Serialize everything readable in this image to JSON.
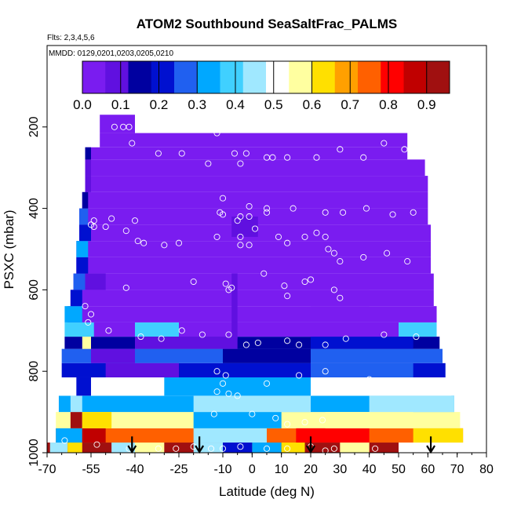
{
  "chart_data": {
    "type": "heatmap",
    "title": "ATOM2 Southbound SeaSaltFrac_PALMS",
    "subtitle_flights": "Flts: 2,3,4,5,6",
    "subtitle_dates": "MMDD: 0129,0201,0203,0205,0210",
    "xlabel": "Latitude (deg N)",
    "ylabel": "PSXC (mbar)",
    "xlim": [
      -70,
      80
    ],
    "ylim": [
      1000,
      0
    ],
    "x_ticks": [
      -70,
      -55,
      -40,
      -25,
      -10,
      0,
      10,
      20,
      30,
      40,
      50,
      60,
      70,
      80
    ],
    "x_tick_labels": [
      "-70",
      "-55",
      "-40",
      "-25",
      "-10",
      "0",
      "10",
      "20",
      "30",
      "40",
      "50",
      "60",
      "70",
      "80"
    ],
    "y_ticks": [
      200,
      400,
      600,
      800,
      1000
    ],
    "y_tick_labels": [
      "200",
      "400",
      "600",
      "800",
      "1000"
    ],
    "colorbar": {
      "min": 0.0,
      "max": 0.96,
      "ticks": [
        0.0,
        0.1,
        0.2,
        0.3,
        0.4,
        0.5,
        0.6,
        0.7,
        0.8,
        0.9
      ],
      "tick_labels": [
        "0.0",
        "0.1",
        "0.2",
        "0.3",
        "0.4",
        "0.5",
        "0.6",
        "0.7",
        "0.8",
        "0.9"
      ],
      "colors": [
        "#7a1cf0",
        "#6010e0",
        "#0000a0",
        "#0010d0",
        "#2060f0",
        "#00a8ff",
        "#40d0ff",
        "#a0e8ff",
        "#ffffff",
        "#ffffa0",
        "#ffe000",
        "#ffa000",
        "#ff6000",
        "#ff0000",
        "#c00000",
        "#a01010"
      ]
    },
    "bands": [
      {
        "p": [
          975,
          1000
        ],
        "x": [
          -70,
          50
        ],
        "value": 0.9
      },
      {
        "p": [
          940,
          975
        ],
        "x": [
          -67,
          72
        ],
        "value": 0.72
      },
      {
        "p": [
          900,
          940
        ],
        "x": [
          -67,
          71
        ],
        "value": 0.55
      },
      {
        "p": [
          860,
          900
        ],
        "x": [
          -66,
          69
        ],
        "value": 0.3
      },
      {
        "p": [
          815,
          860
        ],
        "x": [
          -66,
          68
        ],
        "value": 0.5
      },
      {
        "p": [
          780,
          815
        ],
        "x": [
          -65,
          66
        ],
        "value": 0.22
      },
      {
        "p": [
          745,
          780
        ],
        "x": [
          -65,
          65
        ],
        "value": 0.25
      },
      {
        "p": [
          715,
          745
        ],
        "x": [
          -64,
          64
        ],
        "value": 0.15
      },
      {
        "p": [
          680,
          715
        ],
        "x": [
          -64,
          63
        ],
        "value": 0.4
      },
      {
        "p": [
          640,
          680
        ],
        "x": [
          -63,
          63
        ],
        "value": 0.02
      },
      {
        "p": [
          600,
          640
        ],
        "x": [
          -62,
          62
        ],
        "value": 0.02
      },
      {
        "p": [
          560,
          600
        ],
        "x": [
          -61,
          62
        ],
        "value": 0.02
      },
      {
        "p": [
          520,
          560
        ],
        "x": [
          -60,
          61
        ],
        "value": 0.02
      },
      {
        "p": [
          480,
          520
        ],
        "x": [
          -60,
          61
        ],
        "value": 0.02
      },
      {
        "p": [
          440,
          480
        ],
        "x": [
          -59,
          61
        ],
        "value": 0.02
      },
      {
        "p": [
          400,
          440
        ],
        "x": [
          -59,
          60
        ],
        "value": 0.02
      },
      {
        "p": [
          360,
          400
        ],
        "x": [
          -58,
          60
        ],
        "value": 0.02
      },
      {
        "p": [
          320,
          360
        ],
        "x": [
          -57,
          60
        ],
        "value": 0.02
      },
      {
        "p": [
          280,
          320
        ],
        "x": [
          -57,
          59
        ],
        "value": 0.02
      },
      {
        "p": [
          250,
          280
        ],
        "x": [
          -57,
          53
        ],
        "value": 0.02
      },
      {
        "p": [
          215,
          250
        ],
        "x": [
          -52,
          53
        ],
        "value": 0.02
      },
      {
        "p": [
          170,
          215
        ],
        "x": [
          -52,
          -40
        ],
        "value": 0.02
      }
    ],
    "patches": [
      {
        "p": [
          975,
          1000
        ],
        "x": [
          -69,
          -63
        ],
        "value": 0.45
      },
      {
        "p": [
          975,
          1000
        ],
        "x": [
          -63,
          -58
        ],
        "value": 0.65
      },
      {
        "p": [
          975,
          1000
        ],
        "x": [
          -48,
          -40
        ],
        "value": 0.45
      },
      {
        "p": [
          975,
          1000
        ],
        "x": [
          -40,
          -30
        ],
        "value": 0.55
      },
      {
        "p": [
          975,
          1000
        ],
        "x": [
          -20,
          -10
        ],
        "value": 0.45
      },
      {
        "p": [
          975,
          1000
        ],
        "x": [
          -10,
          0
        ],
        "value": 0.2
      },
      {
        "p": [
          975,
          1000
        ],
        "x": [
          0,
          10
        ],
        "value": 0.35
      },
      {
        "p": [
          975,
          1000
        ],
        "x": [
          10,
          18
        ],
        "value": 0.6
      },
      {
        "p": [
          975,
          1000
        ],
        "x": [
          30,
          40
        ],
        "value": 0.55
      },
      {
        "p": [
          940,
          975
        ],
        "x": [
          -67,
          -58
        ],
        "value": 0.3
      },
      {
        "p": [
          940,
          975
        ],
        "x": [
          -58,
          -50
        ],
        "value": 0.85
      },
      {
        "p": [
          940,
          975
        ],
        "x": [
          -20,
          5
        ],
        "value": 0.45
      },
      {
        "p": [
          940,
          975
        ],
        "x": [
          15,
          40
        ],
        "value": 0.8
      },
      {
        "p": [
          940,
          975
        ],
        "x": [
          55,
          72
        ],
        "value": 0.65
      },
      {
        "p": [
          900,
          940
        ],
        "x": [
          -62,
          -58
        ],
        "value": 0.9
      },
      {
        "p": [
          900,
          940
        ],
        "x": [
          -58,
          -48
        ],
        "value": 0.65
      },
      {
        "p": [
          900,
          940
        ],
        "x": [
          -20,
          10
        ],
        "value": 0.3
      },
      {
        "p": [
          900,
          940
        ],
        "x": [
          25,
          55
        ],
        "value": 0.58
      },
      {
        "p": [
          860,
          900
        ],
        "x": [
          -62,
          -58
        ],
        "value": 0.45
      },
      {
        "p": [
          860,
          900
        ],
        "x": [
          -20,
          20
        ],
        "value": 0.42
      },
      {
        "p": [
          860,
          900
        ],
        "x": [
          40,
          69
        ],
        "value": 0.45
      },
      {
        "p": [
          815,
          860
        ],
        "x": [
          -60,
          -55
        ],
        "value": 0.2
      },
      {
        "p": [
          815,
          860
        ],
        "x": [
          -30,
          20
        ],
        "value": 0.35
      },
      {
        "p": [
          780,
          815
        ],
        "x": [
          -50,
          -25
        ],
        "value": 0.1
      },
      {
        "p": [
          780,
          815
        ],
        "x": [
          20,
          55
        ],
        "value": 0.28
      },
      {
        "p": [
          745,
          780
        ],
        "x": [
          -55,
          -40
        ],
        "value": 0.1
      },
      {
        "p": [
          745,
          780
        ],
        "x": [
          -10,
          20
        ],
        "value": 0.12
      },
      {
        "p": [
          715,
          745
        ],
        "x": [
          -58,
          -55
        ],
        "value": 0.55
      },
      {
        "p": [
          715,
          745
        ],
        "x": [
          -40,
          -5
        ],
        "value": 0.06
      },
      {
        "p": [
          715,
          745
        ],
        "x": [
          20,
          55
        ],
        "value": 0.2
      },
      {
        "p": [
          680,
          715
        ],
        "x": [
          -54,
          -40
        ],
        "value": 0.02
      },
      {
        "p": [
          680,
          715
        ],
        "x": [
          -25,
          50
        ],
        "value": 0.03
      },
      {
        "p": [
          640,
          680
        ],
        "x": [
          -64,
          -58
        ],
        "value": 0.35
      },
      {
        "p": [
          600,
          640
        ],
        "x": [
          -62,
          -58
        ],
        "value": 0.2
      },
      {
        "p": [
          560,
          600
        ],
        "x": [
          -61,
          -57
        ],
        "value": 0.25
      },
      {
        "p": [
          560,
          600
        ],
        "x": [
          -57,
          -50
        ],
        "value": 0.06
      },
      {
        "p": [
          520,
          560
        ],
        "x": [
          -60,
          -56
        ],
        "value": 0.2
      },
      {
        "p": [
          480,
          520
        ],
        "x": [
          -60,
          -56
        ],
        "value": 0.3
      },
      {
        "p": [
          440,
          480
        ],
        "x": [
          -59,
          -55
        ],
        "value": 0.2
      },
      {
        "p": [
          400,
          440
        ],
        "x": [
          -59,
          -56
        ],
        "value": 0.25
      },
      {
        "p": [
          360,
          400
        ],
        "x": [
          -58,
          -56
        ],
        "value": 0.12
      },
      {
        "p": [
          320,
          360
        ],
        "x": [
          -57,
          -55
        ],
        "value": 0.1
      },
      {
        "p": [
          280,
          320
        ],
        "x": [
          -57,
          -55
        ],
        "value": 0.08
      },
      {
        "p": [
          250,
          280
        ],
        "x": [
          -57,
          -55
        ],
        "value": 0.12
      },
      {
        "p": [
          420,
          470
        ],
        "x": [
          -7,
          2
        ],
        "value": 0.1
      },
      {
        "p": [
          560,
          720
        ],
        "x": [
          -7,
          -5
        ],
        "value": 0.1
      },
      {
        "p": [
          600,
          640
        ],
        "x": [
          20,
          40
        ],
        "value": 0.05
      }
    ],
    "points": [
      [
        -44,
        200
      ],
      [
        -47,
        200
      ],
      [
        -42,
        200
      ],
      [
        -41,
        240
      ],
      [
        -32,
        265
      ],
      [
        -24,
        265
      ],
      [
        -15,
        290
      ],
      [
        -12,
        215
      ],
      [
        -6,
        265
      ],
      [
        -4,
        290
      ],
      [
        -2,
        265
      ],
      [
        5,
        275
      ],
      [
        7,
        275
      ],
      [
        12,
        275
      ],
      [
        22,
        275
      ],
      [
        30,
        255
      ],
      [
        38,
        275
      ],
      [
        45,
        240
      ],
      [
        52,
        255
      ],
      [
        -10,
        375
      ],
      [
        -11,
        410
      ],
      [
        -10,
        415
      ],
      [
        -1,
        395
      ],
      [
        -4,
        420
      ],
      [
        -1,
        420
      ],
      [
        1,
        450
      ],
      [
        5,
        400
      ],
      [
        -5,
        430
      ],
      [
        -4,
        470
      ],
      [
        5,
        410
      ],
      [
        14,
        400
      ],
      [
        25,
        410
      ],
      [
        31,
        410
      ],
      [
        39,
        400
      ],
      [
        48,
        415
      ],
      [
        55,
        410
      ],
      [
        -48,
        425
      ],
      [
        -54,
        430
      ],
      [
        -50,
        445
      ],
      [
        -40,
        430
      ],
      [
        -43,
        455
      ],
      [
        -39,
        480
      ],
      [
        -37,
        485
      ],
      [
        -30,
        490
      ],
      [
        -25,
        485
      ],
      [
        -12,
        470
      ],
      [
        -4,
        490
      ],
      [
        -1,
        490
      ],
      [
        9,
        470
      ],
      [
        12,
        485
      ],
      [
        18,
        470
      ],
      [
        22,
        460
      ],
      [
        25,
        470
      ],
      [
        26,
        500
      ],
      [
        28,
        510
      ],
      [
        30,
        530
      ],
      [
        38,
        520
      ],
      [
        46,
        510
      ],
      [
        53,
        530
      ],
      [
        -54,
        445
      ],
      [
        -55,
        440
      ],
      [
        -43,
        595
      ],
      [
        -20,
        580
      ],
      [
        -8,
        600
      ],
      [
        -7,
        595
      ],
      [
        -9,
        585
      ],
      [
        4,
        560
      ],
      [
        11,
        590
      ],
      [
        12,
        615
      ],
      [
        18,
        580
      ],
      [
        20,
        575
      ],
      [
        28,
        600
      ],
      [
        30,
        620
      ],
      [
        -55,
        660
      ],
      [
        -57,
        640
      ],
      [
        -56,
        680
      ],
      [
        -49,
        700
      ],
      [
        -38,
        715
      ],
      [
        -31,
        720
      ],
      [
        -24,
        700
      ],
      [
        -17,
        710
      ],
      [
        -8,
        710
      ],
      [
        -2,
        735
      ],
      [
        2,
        730
      ],
      [
        12,
        725
      ],
      [
        16,
        735
      ],
      [
        25,
        735
      ],
      [
        32,
        720
      ],
      [
        45,
        710
      ],
      [
        56,
        715
      ],
      [
        -12,
        800
      ],
      [
        -9,
        810
      ],
      [
        -10,
        830
      ],
      [
        -8,
        855
      ],
      [
        -12,
        850
      ],
      [
        -5,
        860
      ],
      [
        5,
        830
      ],
      [
        16,
        810
      ],
      [
        25,
        800
      ],
      [
        40,
        820
      ],
      [
        -13,
        905
      ],
      [
        0,
        905
      ],
      [
        8,
        915
      ],
      [
        12,
        930
      ],
      [
        18,
        925
      ],
      [
        24,
        920
      ],
      [
        -64,
        970
      ],
      [
        -53,
        980
      ],
      [
        -42,
        990
      ],
      [
        -32,
        990
      ],
      [
        -26,
        990
      ],
      [
        -20,
        985
      ],
      [
        -14,
        990
      ],
      [
        -10,
        990
      ],
      [
        -4,
        985
      ],
      [
        5,
        990
      ],
      [
        12,
        990
      ],
      [
        20,
        985
      ],
      [
        25,
        995
      ],
      [
        28,
        990
      ],
      [
        42,
        990
      ]
    ],
    "arrows": [
      -41,
      -18,
      20,
      61
    ]
  }
}
